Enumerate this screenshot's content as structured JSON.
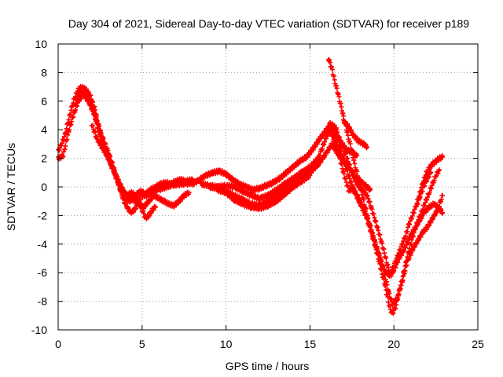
{
  "chart_data": {
    "type": "scatter",
    "title": "Day 304 of 2021, Sidereal Day-to-day VTEC variation (SDTVAR) for receiver p189",
    "xlabel": "GPS time / hours",
    "ylabel": "SDTVAR / TECUs",
    "xlim": [
      0,
      25
    ],
    "ylim": [
      -10,
      10
    ],
    "xticks": [
      0,
      5,
      10,
      15,
      20,
      25
    ],
    "yticks": [
      -10,
      -8,
      -6,
      -4,
      -2,
      0,
      2,
      4,
      6,
      8,
      10
    ],
    "grid": true,
    "marker": "plus",
    "color": "#ff0000",
    "tracks": [
      [
        [
          0.0,
          2.5
        ],
        [
          0.2,
          3.0
        ],
        [
          0.4,
          3.6
        ],
        [
          0.6,
          4.6
        ],
        [
          0.8,
          5.5
        ],
        [
          1.0,
          6.3
        ],
        [
          1.2,
          6.8
        ],
        [
          1.4,
          7.0
        ],
        [
          1.6,
          6.8
        ],
        [
          1.8,
          6.2
        ],
        [
          2.0,
          5.6
        ],
        [
          2.2,
          5.0
        ],
        [
          2.4,
          4.3
        ],
        [
          2.6,
          3.6
        ],
        [
          2.8,
          3.0
        ],
        [
          3.0,
          2.4
        ],
        [
          3.2,
          1.7
        ],
        [
          3.4,
          1.0
        ],
        [
          3.6,
          0.2
        ],
        [
          3.8,
          -0.6
        ],
        [
          4.0,
          -1.2
        ],
        [
          4.2,
          -1.6
        ],
        [
          4.4,
          -1.8
        ],
        [
          4.6,
          -1.5
        ],
        [
          4.8,
          -1.0
        ],
        [
          5.0,
          -0.6
        ],
        [
          5.3,
          -0.6
        ],
        [
          5.6,
          -0.3
        ],
        [
          6.0,
          -0.2
        ],
        [
          6.4,
          0.0
        ],
        [
          6.8,
          0.1
        ],
        [
          7.2,
          0.2
        ],
        [
          7.6,
          0.2
        ],
        [
          8.0,
          0.3
        ]
      ],
      [
        [
          0.0,
          2.0
        ],
        [
          0.3,
          2.2
        ],
        [
          0.6,
          3.8
        ],
        [
          0.9,
          5.0
        ],
        [
          1.2,
          6.0
        ],
        [
          1.5,
          6.5
        ],
        [
          1.8,
          6.0
        ],
        [
          2.1,
          5.2
        ],
        [
          2.4,
          4.0
        ],
        [
          2.7,
          2.8
        ],
        [
          3.0,
          2.0
        ],
        [
          3.3,
          1.2
        ],
        [
          3.6,
          0.4
        ],
        [
          3.9,
          -0.3
        ],
        [
          4.2,
          -0.8
        ],
        [
          4.5,
          -0.9
        ],
        [
          4.8,
          -1.2
        ],
        [
          5.1,
          -1.4
        ],
        [
          5.4,
          -1.0
        ],
        [
          5.7,
          -0.6
        ],
        [
          6.0,
          -0.8
        ],
        [
          6.3,
          -1.0
        ],
        [
          6.6,
          -1.2
        ],
        [
          6.9,
          -1.3
        ],
        [
          7.2,
          -1.0
        ],
        [
          7.5,
          -0.6
        ],
        [
          7.8,
          -0.4
        ]
      ],
      [
        [
          1.0,
          5.8
        ],
        [
          1.3,
          6.6
        ],
        [
          1.6,
          6.9
        ],
        [
          1.9,
          6.4
        ],
        [
          2.2,
          5.4
        ],
        [
          2.5,
          3.8
        ],
        [
          2.8,
          2.6
        ],
        [
          3.1,
          1.8
        ],
        [
          3.4,
          0.8
        ],
        [
          3.7,
          -0.2
        ],
        [
          4.0,
          -0.8
        ],
        [
          4.3,
          -1.0
        ],
        [
          4.6,
          -0.6
        ],
        [
          4.9,
          -0.3
        ],
        [
          5.2,
          -0.5
        ],
        [
          5.5,
          -0.2
        ],
        [
          5.8,
          0.0
        ],
        [
          6.1,
          0.2
        ],
        [
          6.4,
          0.3
        ],
        [
          6.7,
          0.2
        ],
        [
          7.0,
          0.4
        ],
        [
          7.3,
          0.5
        ],
        [
          7.6,
          0.4
        ],
        [
          8.0,
          0.5
        ]
      ],
      [
        [
          2.0,
          4.4
        ],
        [
          2.3,
          3.4
        ],
        [
          2.6,
          2.8
        ],
        [
          2.9,
          2.2
        ],
        [
          3.2,
          1.4
        ],
        [
          3.5,
          0.6
        ],
        [
          3.8,
          -0.2
        ],
        [
          4.1,
          -0.6
        ],
        [
          4.4,
          -0.4
        ],
        [
          4.7,
          -0.8
        ],
        [
          5.0,
          -1.6
        ],
        [
          5.2,
          -2.2
        ],
        [
          5.4,
          -2.0
        ],
        [
          5.6,
          -1.6
        ],
        [
          5.8,
          -1.4
        ]
      ],
      [
        [
          8.0,
          0.2
        ],
        [
          8.4,
          0.5
        ],
        [
          8.8,
          0.8
        ],
        [
          9.2,
          1.0
        ],
        [
          9.6,
          1.1
        ],
        [
          10.0,
          0.9
        ],
        [
          10.4,
          0.5
        ],
        [
          10.8,
          0.2
        ],
        [
          11.2,
          0.0
        ],
        [
          11.6,
          -0.2
        ],
        [
          12.0,
          -0.1
        ],
        [
          12.4,
          0.1
        ],
        [
          12.8,
          0.3
        ],
        [
          13.2,
          0.6
        ],
        [
          13.6,
          1.0
        ],
        [
          14.0,
          1.4
        ],
        [
          14.4,
          1.8
        ],
        [
          14.8,
          2.1
        ],
        [
          15.2,
          2.7
        ],
        [
          15.6,
          3.4
        ],
        [
          16.0,
          4.0
        ],
        [
          16.2,
          4.4
        ],
        [
          16.4,
          4.3
        ],
        [
          16.6,
          4.0
        ]
      ],
      [
        [
          8.5,
          0.2
        ],
        [
          9.0,
          0.1
        ],
        [
          9.5,
          0.0
        ],
        [
          10.0,
          0.1
        ],
        [
          10.5,
          0.0
        ],
        [
          11.0,
          -0.3
        ],
        [
          11.5,
          -0.6
        ],
        [
          12.0,
          -0.8
        ],
        [
          12.5,
          -0.6
        ],
        [
          13.0,
          -0.2
        ],
        [
          13.5,
          0.2
        ],
        [
          14.0,
          0.6
        ],
        [
          14.5,
          1.0
        ],
        [
          15.0,
          1.4
        ],
        [
          15.5,
          2.0
        ],
        [
          16.0,
          3.6
        ],
        [
          16.3,
          4.2
        ],
        [
          16.6,
          3.6
        ],
        [
          16.9,
          3.0
        ],
        [
          17.2,
          2.6
        ],
        [
          17.5,
          2.4
        ],
        [
          17.8,
          2.2
        ]
      ],
      [
        [
          9.0,
          0.0
        ],
        [
          9.5,
          -0.1
        ],
        [
          10.0,
          -0.3
        ],
        [
          10.5,
          -0.6
        ],
        [
          11.0,
          -0.9
        ],
        [
          11.5,
          -1.2
        ],
        [
          12.0,
          -1.3
        ],
        [
          12.5,
          -1.0
        ],
        [
          13.0,
          -0.6
        ],
        [
          13.5,
          -0.2
        ],
        [
          14.0,
          0.2
        ],
        [
          14.5,
          0.6
        ],
        [
          15.0,
          1.0
        ],
        [
          15.5,
          1.6
        ],
        [
          16.0,
          2.4
        ],
        [
          16.3,
          3.0
        ],
        [
          16.6,
          2.4
        ],
        [
          17.0,
          1.8
        ],
        [
          17.4,
          1.2
        ],
        [
          17.8,
          0.6
        ],
        [
          18.2,
          0.2
        ],
        [
          18.6,
          -0.2
        ]
      ],
      [
        [
          9.5,
          -0.2
        ],
        [
          10.0,
          -0.4
        ],
        [
          10.5,
          -0.9
        ],
        [
          11.0,
          -1.2
        ],
        [
          11.5,
          -1.4
        ],
        [
          12.0,
          -1.5
        ],
        [
          12.5,
          -1.3
        ],
        [
          13.0,
          -1.0
        ],
        [
          13.5,
          -0.5
        ],
        [
          14.0,
          0.0
        ],
        [
          14.5,
          0.4
        ],
        [
          15.0,
          0.8
        ]
      ],
      [
        [
          16.1,
          9.0
        ],
        [
          16.3,
          8.3
        ],
        [
          16.5,
          7.3
        ],
        [
          16.7,
          6.4
        ],
        [
          16.9,
          5.4
        ],
        [
          17.1,
          4.4
        ],
        [
          17.3,
          3.4
        ],
        [
          17.5,
          2.5
        ],
        [
          17.7,
          1.4
        ],
        [
          17.9,
          0.6
        ],
        [
          18.1,
          -0.5
        ],
        [
          18.3,
          -1.5
        ],
        [
          18.5,
          -2.4
        ],
        [
          18.7,
          -3.2
        ],
        [
          18.9,
          -4.0
        ],
        [
          19.1,
          -4.8
        ],
        [
          19.3,
          -5.4
        ],
        [
          19.5,
          -5.9
        ],
        [
          19.7,
          -6.2
        ],
        [
          19.9,
          -5.8
        ],
        [
          20.1,
          -5.2
        ],
        [
          20.3,
          -4.6
        ],
        [
          20.5,
          -4.0
        ],
        [
          20.7,
          -3.4
        ],
        [
          20.9,
          -2.6
        ],
        [
          21.1,
          -2.0
        ],
        [
          21.3,
          -1.4
        ],
        [
          21.5,
          -0.6
        ],
        [
          21.7,
          0.2
        ],
        [
          21.9,
          0.9
        ],
        [
          22.1,
          1.3
        ],
        [
          22.3,
          1.6
        ],
        [
          22.5,
          1.8
        ],
        [
          22.7,
          2.0
        ],
        [
          22.9,
          2.1
        ]
      ],
      [
        [
          16.2,
          3.8
        ],
        [
          16.5,
          3.4
        ],
        [
          16.8,
          2.6
        ],
        [
          17.1,
          1.6
        ],
        [
          17.4,
          0.4
        ],
        [
          17.7,
          -0.4
        ],
        [
          18.0,
          -1.0
        ],
        [
          18.3,
          -1.8
        ],
        [
          18.6,
          -3.0
        ],
        [
          18.9,
          -4.2
        ],
        [
          19.2,
          -5.6
        ],
        [
          19.5,
          -7.0
        ],
        [
          19.7,
          -8.2
        ],
        [
          19.9,
          -8.9
        ],
        [
          20.1,
          -8.4
        ],
        [
          20.3,
          -7.4
        ],
        [
          20.5,
          -6.4
        ],
        [
          20.7,
          -5.4
        ],
        [
          20.9,
          -4.4
        ],
        [
          21.1,
          -3.6
        ],
        [
          21.3,
          -2.8
        ],
        [
          21.5,
          -2.2
        ],
        [
          21.7,
          -1.6
        ],
        [
          21.9,
          -1.0
        ],
        [
          22.1,
          -0.4
        ],
        [
          22.3,
          0.2
        ],
        [
          22.5,
          0.8
        ],
        [
          22.7,
          1.2
        ]
      ],
      [
        [
          16.6,
          3.8
        ],
        [
          16.9,
          3.0
        ],
        [
          17.2,
          2.0
        ],
        [
          17.5,
          1.0
        ],
        [
          17.8,
          0.2
        ],
        [
          18.1,
          -0.2
        ],
        [
          18.4,
          -0.6
        ],
        [
          18.7,
          -1.6
        ],
        [
          19.0,
          -2.8
        ],
        [
          19.3,
          -4.0
        ],
        [
          19.6,
          -5.4
        ],
        [
          19.8,
          -6.2
        ],
        [
          20.0,
          -5.8
        ],
        [
          20.3,
          -5.0
        ],
        [
          20.6,
          -4.4
        ],
        [
          20.9,
          -3.6
        ],
        [
          21.2,
          -3.0
        ],
        [
          21.5,
          -2.4
        ],
        [
          21.8,
          -1.8
        ],
        [
          22.1,
          -1.4
        ],
        [
          22.4,
          -1.2
        ],
        [
          22.7,
          -1.5
        ],
        [
          22.9,
          -1.8
        ]
      ],
      [
        [
          16.4,
          3.2
        ],
        [
          16.7,
          2.4
        ],
        [
          17.0,
          1.0
        ],
        [
          17.3,
          -0.2
        ],
        [
          17.6,
          -0.2
        ],
        [
          18.0,
          -1.2
        ],
        [
          18.4,
          -2.2
        ],
        [
          18.8,
          -3.6
        ],
        [
          19.2,
          -5.0
        ],
        [
          19.5,
          -6.4
        ],
        [
          19.7,
          -7.4
        ],
        [
          19.9,
          -8.2
        ],
        [
          20.2,
          -7.8
        ],
        [
          20.5,
          -6.6
        ],
        [
          20.8,
          -5.2
        ],
        [
          21.1,
          -4.4
        ],
        [
          21.4,
          -3.8
        ],
        [
          21.7,
          -3.2
        ],
        [
          22.0,
          -2.8
        ],
        [
          22.3,
          -2.2
        ],
        [
          22.6,
          -1.6
        ],
        [
          22.9,
          -0.6
        ]
      ],
      [
        [
          17.0,
          4.6
        ],
        [
          17.3,
          4.2
        ],
        [
          17.6,
          3.6
        ],
        [
          17.9,
          3.2
        ],
        [
          18.2,
          3.0
        ],
        [
          18.4,
          2.8
        ]
      ],
      [
        [
          21.4,
          -1.2
        ],
        [
          21.6,
          -0.5
        ],
        [
          21.8,
          0.1
        ],
        [
          22.0,
          0.6
        ],
        [
          22.2,
          1.0
        ]
      ]
    ]
  }
}
